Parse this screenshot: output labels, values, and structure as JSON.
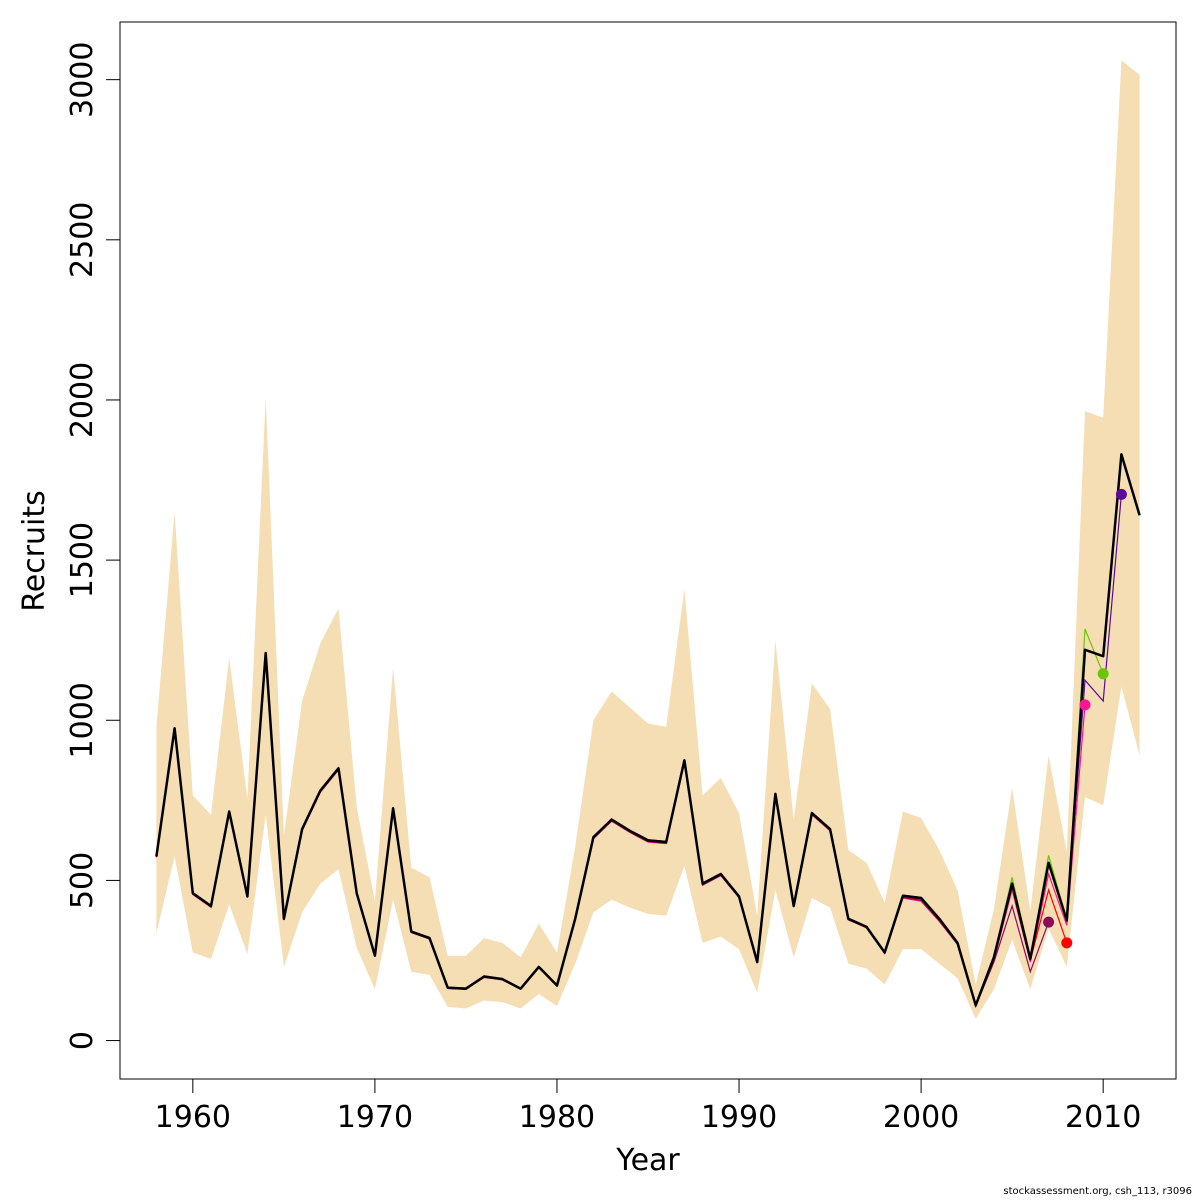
{
  "chart_data": {
    "type": "line",
    "title": "",
    "xlabel": "Year",
    "ylabel": "Recruits",
    "xlim": [
      1956,
      2014
    ],
    "ylim": [
      -120,
      3180
    ],
    "x_ticks": [
      1960,
      1970,
      1980,
      1990,
      2000,
      2010
    ],
    "y_ticks": [
      0,
      500,
      1000,
      1500,
      2000,
      2500,
      3000
    ],
    "grid": false,
    "legend": "none",
    "colors": {
      "band": "#f5deb3",
      "main": "#000000",
      "retro_2011": "#5a0a9a",
      "retro_2010": "#6cc40a",
      "retro_2009": "#ff1493",
      "retro_2008": "#ff0000",
      "retro_2007": "#8b0a5a"
    },
    "x": [
      1958,
      1959,
      1960,
      1961,
      1962,
      1963,
      1964,
      1965,
      1966,
      1967,
      1968,
      1969,
      1970,
      1971,
      1972,
      1973,
      1974,
      1975,
      1976,
      1977,
      1978,
      1979,
      1980,
      1981,
      1982,
      1983,
      1984,
      1985,
      1986,
      1987,
      1988,
      1989,
      1990,
      1991,
      1992,
      1993,
      1994,
      1995,
      1996,
      1997,
      1998,
      1999,
      2000,
      2001,
      2002,
      2003,
      2004,
      2005,
      2006,
      2007,
      2008,
      2009,
      2010,
      2011,
      2012
    ],
    "estimate": [
      575,
      975,
      460,
      420,
      715,
      450,
      1210,
      380,
      660,
      780,
      850,
      460,
      265,
      725,
      340,
      320,
      165,
      162,
      200,
      192,
      162,
      230,
      172,
      380,
      635,
      690,
      655,
      625,
      620,
      875,
      490,
      520,
      450,
      245,
      770,
      420,
      710,
      660,
      380,
      355,
      275,
      452,
      445,
      380,
      305,
      110,
      260,
      490,
      255,
      555,
      375,
      1220,
      1200,
      1830,
      1640
    ],
    "upper": [
      980,
      1650,
      765,
      705,
      1195,
      755,
      2010,
      640,
      1060,
      1240,
      1350,
      730,
      435,
      1165,
      540,
      510,
      265,
      265,
      320,
      305,
      260,
      365,
      275,
      605,
      1000,
      1090,
      1040,
      990,
      980,
      1410,
      765,
      820,
      710,
      390,
      1250,
      690,
      1115,
      1035,
      595,
      555,
      430,
      715,
      695,
      595,
      470,
      175,
      410,
      790,
      405,
      890,
      590,
      1965,
      1945,
      3060,
      3015
    ],
    "lower": [
      335,
      575,
      275,
      255,
      425,
      270,
      705,
      230,
      400,
      490,
      535,
      290,
      160,
      440,
      215,
      205,
      105,
      100,
      125,
      120,
      100,
      145,
      108,
      240,
      400,
      440,
      415,
      395,
      390,
      545,
      305,
      325,
      285,
      150,
      470,
      260,
      445,
      415,
      240,
      225,
      175,
      285,
      285,
      240,
      195,
      68,
      160,
      315,
      160,
      350,
      230,
      760,
      735,
      1105,
      890
    ],
    "retro_series": [
      {
        "key": "retro_2011",
        "x": [
          1958,
          1959,
          1960,
          1961,
          1962,
          1963,
          1964,
          1965,
          1966,
          1967,
          1968,
          1969,
          1970,
          1971,
          1972,
          1973,
          1974,
          1975,
          1976,
          1977,
          1978,
          1979,
          1980,
          1981,
          1982,
          1983,
          1984,
          1985,
          1986,
          1987,
          1988,
          1989,
          1990,
          1991,
          1992,
          1993,
          1994,
          1995,
          1996,
          1997,
          1998,
          1999,
          2000,
          2001,
          2002,
          2003,
          2004,
          2005,
          2006,
          2007,
          2008,
          2009,
          2010,
          2011
        ],
        "values": [
          578,
          978,
          462,
          422,
          718,
          452,
          1212,
          382,
          662,
          782,
          852,
          462,
          267,
          727,
          342,
          322,
          167,
          164,
          202,
          194,
          164,
          232,
          174,
          382,
          637,
          692,
          657,
          627,
          622,
          877,
          492,
          522,
          452,
          247,
          772,
          422,
          712,
          662,
          382,
          357,
          277,
          454,
          447,
          382,
          307,
          112,
          262,
          492,
          257,
          557,
          377,
          1125,
          1060,
          1705
        ]
      },
      {
        "key": "retro_2010",
        "x": [
          1958,
          1959,
          1960,
          1961,
          1962,
          1963,
          1964,
          1965,
          1966,
          1967,
          1968,
          1969,
          1970,
          1971,
          1972,
          1973,
          1974,
          1975,
          1976,
          1977,
          1978,
          1979,
          1980,
          1981,
          1982,
          1983,
          1984,
          1985,
          1986,
          1987,
          1988,
          1989,
          1990,
          1991,
          1992,
          1993,
          1994,
          1995,
          1996,
          1997,
          1998,
          1999,
          2000,
          2001,
          2002,
          2003,
          2004,
          2005,
          2006,
          2007,
          2008,
          2009,
          2010
        ],
        "values": [
          574,
          974,
          459,
          419,
          714,
          449,
          1209,
          379,
          659,
          779,
          849,
          459,
          264,
          724,
          339,
          319,
          164,
          161,
          199,
          191,
          161,
          229,
          171,
          379,
          634,
          689,
          654,
          624,
          619,
          874,
          489,
          519,
          449,
          244,
          769,
          419,
          709,
          659,
          379,
          354,
          274,
          451,
          444,
          379,
          304,
          109,
          262,
          510,
          258,
          578,
          378,
          1285,
          1145
        ]
      },
      {
        "key": "retro_2009",
        "x": [
          1958,
          1959,
          1960,
          1961,
          1962,
          1963,
          1964,
          1965,
          1966,
          1967,
          1968,
          1969,
          1970,
          1971,
          1972,
          1973,
          1974,
          1975,
          1976,
          1977,
          1978,
          1979,
          1980,
          1981,
          1982,
          1983,
          1984,
          1985,
          1986,
          1987,
          1988,
          1989,
          1990,
          1991,
          1992,
          1993,
          1994,
          1995,
          1996,
          1997,
          1998,
          1999,
          2000,
          2001,
          2002,
          2003,
          2004,
          2005,
          2006,
          2007,
          2008,
          2009
        ],
        "values": [
          572,
          972,
          456,
          416,
          710,
          446,
          1205,
          376,
          655,
          775,
          845,
          455,
          262,
          720,
          337,
          317,
          163,
          160,
          197,
          190,
          160,
          227,
          170,
          377,
          630,
          685,
          650,
          620,
          615,
          870,
          485,
          515,
          446,
          242,
          765,
          417,
          705,
          655,
          377,
          352,
          272,
          445,
          435,
          372,
          300,
          107,
          250,
          470,
          245,
          520,
          360,
          1048
        ]
      },
      {
        "key": "retro_2008",
        "x": [
          1958,
          1959,
          1960,
          1961,
          1962,
          1963,
          1964,
          1965,
          1966,
          1967,
          1968,
          1969,
          1970,
          1971,
          1972,
          1973,
          1974,
          1975,
          1976,
          1977,
          1978,
          1979,
          1980,
          1981,
          1982,
          1983,
          1984,
          1985,
          1986,
          1987,
          1988,
          1989,
          1990,
          1991,
          1992,
          1993,
          1994,
          1995,
          1996,
          1997,
          1998,
          1999,
          2000,
          2001,
          2002,
          2003,
          2004,
          2005,
          2006,
          2007,
          2008
        ],
        "values": [
          573,
          973,
          458,
          418,
          712,
          448,
          1207,
          378,
          657,
          777,
          847,
          457,
          263,
          722,
          338,
          318,
          164,
          161,
          198,
          191,
          161,
          228,
          171,
          378,
          632,
          687,
          652,
          622,
          617,
          872,
          487,
          517,
          448,
          243,
          767,
          418,
          707,
          657,
          378,
          353,
          273,
          448,
          440,
          376,
          302,
          108,
          255,
          480,
          250,
          470,
          305
        ]
      },
      {
        "key": "retro_2007",
        "x": [
          1958,
          1959,
          1960,
          1961,
          1962,
          1963,
          1964,
          1965,
          1966,
          1967,
          1968,
          1969,
          1970,
          1971,
          1972,
          1973,
          1974,
          1975,
          1976,
          1977,
          1978,
          1979,
          1980,
          1981,
          1982,
          1983,
          1984,
          1985,
          1986,
          1987,
          1988,
          1989,
          1990,
          1991,
          1992,
          1993,
          1994,
          1995,
          1996,
          1997,
          1998,
          1999,
          2000,
          2001,
          2002,
          2003,
          2004,
          2005,
          2006,
          2007
        ],
        "values": [
          573,
          973,
          457,
          417,
          711,
          447,
          1206,
          377,
          656,
          776,
          846,
          456,
          263,
          721,
          338,
          318,
          163,
          161,
          198,
          190,
          161,
          228,
          171,
          378,
          631,
          686,
          651,
          621,
          616,
          871,
          486,
          516,
          447,
          243,
          766,
          418,
          706,
          656,
          378,
          353,
          273,
          446,
          438,
          374,
          301,
          107,
          245,
          420,
          215,
          370
        ]
      }
    ],
    "terminal_points": [
      {
        "key": "retro_2011",
        "x": 2011,
        "y": 1705
      },
      {
        "key": "retro_2010",
        "x": 2010,
        "y": 1145
      },
      {
        "key": "retro_2009",
        "x": 2009,
        "y": 1048
      },
      {
        "key": "retro_2008",
        "x": 2008,
        "y": 305
      },
      {
        "key": "retro_2007",
        "x": 2007,
        "y": 370
      }
    ]
  },
  "caption": "stockassessment.org, csh_113, r3096"
}
